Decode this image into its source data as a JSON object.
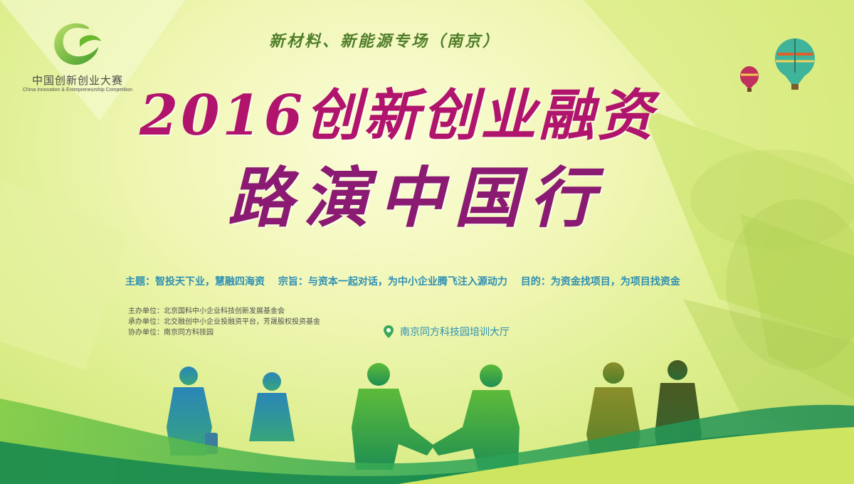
{
  "logo": {
    "name_cn": "中国创新创业大赛",
    "name_en": "China Innovation & Entrepreneurship Competition",
    "icon": "c-swirl-logo-icon"
  },
  "subtitle": "新材料、新能源专场（南京）",
  "title": {
    "line1": "2016创新创业融资",
    "line2": "路演中国行"
  },
  "theme": {
    "topic": "主题：智投天下业，慧融四海资",
    "purpose": "宗旨：与资本一起对话，为中小企业腾飞注入源动力",
    "goal": "目的：为资金找项目，为项目找资金"
  },
  "organizers": {
    "host": "主办单位：北京国科中小企业科技创新发展基金会",
    "organizer": "承办单位：北交融创中小企业投融资平台，芳晟股权投资基金",
    "co_organizer": "协办单位：南京同方科技园"
  },
  "venue": {
    "icon": "location-pin-icon",
    "text": "南京同方科技园培训大厅"
  },
  "colors": {
    "title_primary": "#b0146d",
    "title_secondary": "#8a1a72",
    "info_blue": "#2e8fb3",
    "subtitle_green": "#4f7d2a",
    "wave_green": "#2fa657"
  }
}
